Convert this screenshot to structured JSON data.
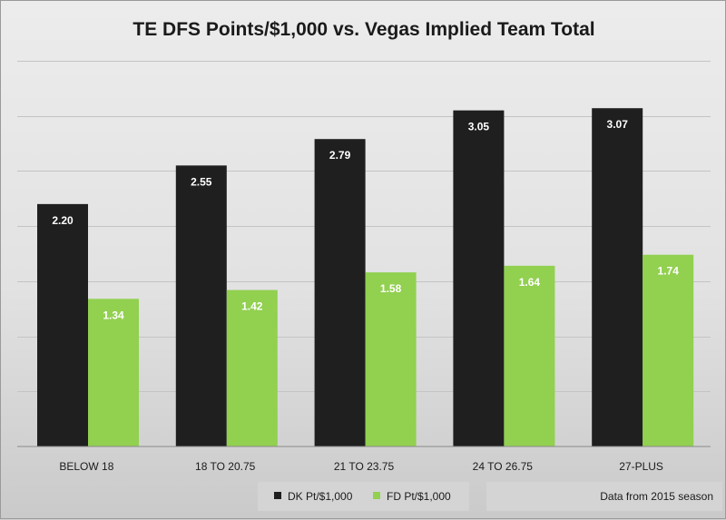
{
  "chart_data": {
    "type": "bar",
    "title": "TE DFS Points/$1,000 vs. Vegas Implied Team Total",
    "categories": [
      "BELOW 18",
      "18 TO 20.75",
      "21 TO 23.75",
      "24 TO 26.75",
      "27-PLUS"
    ],
    "series": [
      {
        "name": "DK Pt/$1,000",
        "color": "#1f1f1f",
        "values": [
          2.2,
          2.55,
          2.79,
          3.05,
          3.07
        ]
      },
      {
        "name": "FD Pt/$1,000",
        "color": "#92d050",
        "values": [
          1.34,
          1.42,
          1.58,
          1.64,
          1.74
        ]
      }
    ],
    "ylim": [
      0,
      3.5
    ],
    "y_axis_labels_shown": false,
    "grid": true,
    "legend_position": "bottom",
    "note": "Data from 2015 season"
  }
}
